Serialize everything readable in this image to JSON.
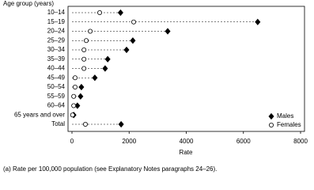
{
  "chart_data": {
    "type": "dot",
    "y_axis_label": "Age group (years)",
    "x_axis_label": "Rate",
    "note": "(a) Rate per 100,000 population (see Explanatory Notes paragraphs 24–26).",
    "categories": [
      "10–14",
      "15–19",
      "20–24",
      "25–29",
      "30–34",
      "35–39",
      "40–44",
      "45–49",
      "50–54",
      "55–59",
      "60–64",
      "65 years and over",
      "Total"
    ],
    "series": [
      {
        "name": "Males",
        "color": "#000000",
        "marker": "diamond",
        "values": [
          1700,
          6500,
          3350,
          2130,
          1910,
          1250,
          1160,
          800,
          330,
          300,
          190,
          60,
          1720
        ]
      },
      {
        "name": "Females",
        "color": "#ffffff",
        "marker": "circle",
        "values": [
          970,
          2160,
          640,
          500,
          420,
          420,
          420,
          110,
          110,
          60,
          60,
          20,
          470
        ]
      }
    ],
    "xlim": [
      0,
      8000
    ],
    "xticks": [
      0,
      2000,
      4000,
      6000,
      8000
    ],
    "legend": "lower right"
  }
}
